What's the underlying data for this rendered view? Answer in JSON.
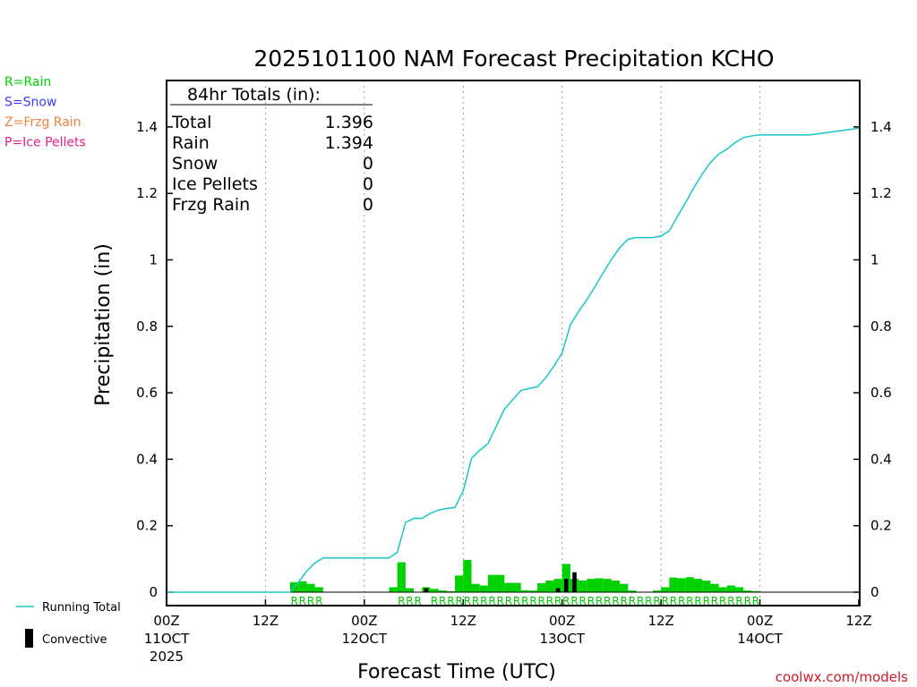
{
  "chart_data": {
    "type": "bar",
    "title": "2025101100 NAM Forecast Precipitation KCHO",
    "xlabel": "Forecast Time (UTC)",
    "ylabel": "Precipitation (in)",
    "ylim": [
      0,
      1.5
    ],
    "yticks": [
      "0",
      "0.2",
      "0.4",
      "0.6",
      "0.8",
      "1",
      "1.2",
      "1.4"
    ],
    "xlim_hours": [
      0,
      84
    ],
    "x_ticks": [
      {
        "hour": 0,
        "line1": "00Z",
        "line2": "11OCT",
        "line3": "2025"
      },
      {
        "hour": 12,
        "line1": "12Z",
        "line2": "",
        "line3": ""
      },
      {
        "hour": 24,
        "line1": "00Z",
        "line2": "12OCT",
        "line3": ""
      },
      {
        "hour": 36,
        "line1": "12Z",
        "line2": "",
        "line3": ""
      },
      {
        "hour": 48,
        "line1": "00Z",
        "line2": "13OCT",
        "line3": ""
      },
      {
        "hour": 60,
        "line1": "12Z",
        "line2": "",
        "line3": ""
      },
      {
        "hour": 72,
        "line1": "00Z",
        "line2": "14OCT",
        "line3": ""
      },
      {
        "hour": 84,
        "line1": "12Z",
        "line2": "",
        "line3": ""
      }
    ],
    "totals": {
      "header": "84hr Totals (in):",
      "rows": [
        {
          "label": "Total",
          "value": "1.396"
        },
        {
          "label": "Rain",
          "value": "1.394"
        },
        {
          "label": "Snow",
          "value": "0"
        },
        {
          "label": "Ice Pellets",
          "value": "0"
        },
        {
          "label": "Frzg Rain",
          "value": "0"
        }
      ]
    },
    "bar_width_hours": 1,
    "series": [
      {
        "name": "Hourly Rain",
        "color": "#00d200",
        "bars": [
          [
            16,
            0.03
          ],
          [
            17,
            0.033
          ],
          [
            18,
            0.025
          ],
          [
            19,
            0.015
          ],
          [
            28,
            0.015
          ],
          [
            29,
            0.09
          ],
          [
            30,
            0.012
          ],
          [
            32,
            0.015
          ],
          [
            33,
            0.01
          ],
          [
            34,
            0.005
          ],
          [
            35,
            0.003
          ],
          [
            36,
            0.05
          ],
          [
            37,
            0.097
          ],
          [
            38,
            0.025
          ],
          [
            39,
            0.02
          ],
          [
            40,
            0.052
          ],
          [
            41,
            0.052
          ],
          [
            42,
            0.028
          ],
          [
            43,
            0.028
          ],
          [
            44,
            0.006
          ],
          [
            45,
            0.005
          ],
          [
            46,
            0.027
          ],
          [
            47,
            0.035
          ],
          [
            48,
            0.04
          ],
          [
            49,
            0.085
          ],
          [
            50,
            0.04
          ],
          [
            51,
            0.035
          ],
          [
            52,
            0.04
          ],
          [
            53,
            0.042
          ],
          [
            54,
            0.04
          ],
          [
            55,
            0.035
          ],
          [
            56,
            0.025
          ],
          [
            57,
            0.005
          ],
          [
            60,
            0.005
          ],
          [
            61,
            0.015
          ],
          [
            62,
            0.044
          ],
          [
            63,
            0.042
          ],
          [
            64,
            0.045
          ],
          [
            65,
            0.04
          ],
          [
            66,
            0.035
          ],
          [
            67,
            0.025
          ],
          [
            68,
            0.015
          ],
          [
            69,
            0.02
          ],
          [
            70,
            0.015
          ],
          [
            71,
            0.005
          ],
          [
            72,
            0.003
          ]
        ]
      },
      {
        "name": "Convective",
        "color": "#000000",
        "bars": [
          [
            32,
            0.012
          ],
          [
            48,
            0.012
          ],
          [
            49,
            0.04
          ],
          [
            50,
            0.06
          ]
        ]
      }
    ],
    "running_total": {
      "name": "Running Total",
      "color": "#18c8c8",
      "points": [
        [
          0,
          0
        ],
        [
          15,
          0
        ],
        [
          16,
          0.03
        ],
        [
          17,
          0.063
        ],
        [
          18,
          0.088
        ],
        [
          19,
          0.103
        ],
        [
          20,
          0.103
        ],
        [
          27,
          0.103
        ],
        [
          28,
          0.12
        ],
        [
          29,
          0.21
        ],
        [
          30,
          0.222
        ],
        [
          31,
          0.222
        ],
        [
          32,
          0.237
        ],
        [
          33,
          0.247
        ],
        [
          34,
          0.252
        ],
        [
          35,
          0.255
        ],
        [
          36,
          0.305
        ],
        [
          37,
          0.402
        ],
        [
          38,
          0.427
        ],
        [
          39,
          0.447
        ],
        [
          40,
          0.499
        ],
        [
          41,
          0.551
        ],
        [
          42,
          0.579
        ],
        [
          43,
          0.607
        ],
        [
          44,
          0.613
        ],
        [
          45,
          0.618
        ],
        [
          46,
          0.645
        ],
        [
          47,
          0.68
        ],
        [
          48,
          0.72
        ],
        [
          49,
          0.805
        ],
        [
          50,
          0.845
        ],
        [
          51,
          0.88
        ],
        [
          52,
          0.92
        ],
        [
          53,
          0.962
        ],
        [
          54,
          1.002
        ],
        [
          55,
          1.037
        ],
        [
          56,
          1.062
        ],
        [
          57,
          1.067
        ],
        [
          58,
          1.067
        ],
        [
          59,
          1.067
        ],
        [
          60,
          1.072
        ],
        [
          61,
          1.087
        ],
        [
          62,
          1.131
        ],
        [
          63,
          1.173
        ],
        [
          64,
          1.218
        ],
        [
          65,
          1.258
        ],
        [
          66,
          1.293
        ],
        [
          67,
          1.318
        ],
        [
          68,
          1.333
        ],
        [
          69,
          1.353
        ],
        [
          70,
          1.368
        ],
        [
          71,
          1.373
        ],
        [
          72,
          1.376
        ],
        [
          78,
          1.376
        ],
        [
          84,
          1.396
        ]
      ]
    },
    "ptype_labels": {
      "symbol": "R",
      "runs": [
        [
          16,
          20
        ],
        [
          29,
          32
        ],
        [
          33,
          61
        ],
        [
          61,
          73
        ]
      ]
    },
    "legend_ptype": [
      {
        "text": "R=Rain",
        "color": "#00d200"
      },
      {
        "text": "S=Snow",
        "color": "#3c3cff"
      },
      {
        "text": "Z=Frzg Rain",
        "color": "#f0823c"
      },
      {
        "text": "P=Ice Pellets",
        "color": "#e61e8c"
      }
    ],
    "legend_series": [
      {
        "text": "Running Total",
        "kind": "line",
        "color": "#18c8c8"
      },
      {
        "text": "Convective",
        "kind": "bar",
        "color": "#000000"
      }
    ],
    "credit": "coolwx.com/models"
  }
}
